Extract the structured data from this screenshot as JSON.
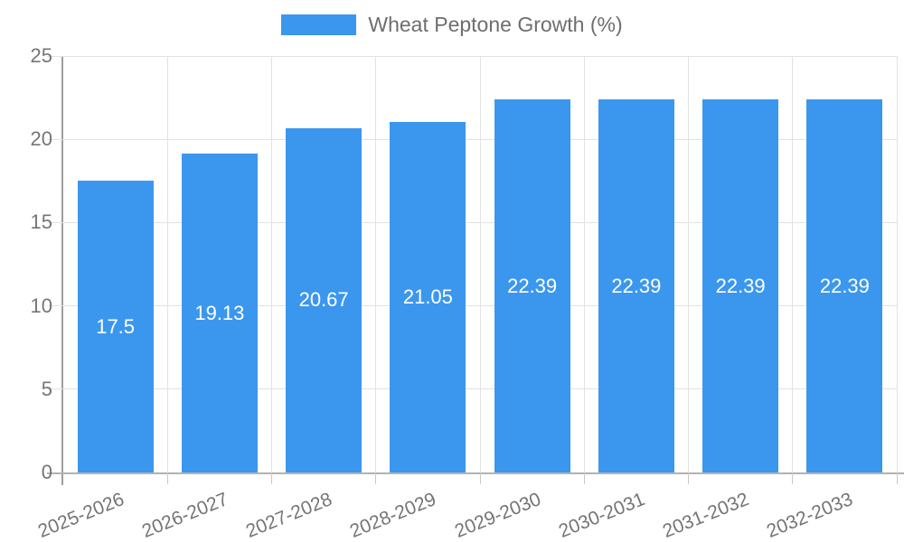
{
  "chart_data": {
    "type": "bar",
    "title": "",
    "legend": {
      "label": "Wheat Peptone Growth (%)",
      "position": "top"
    },
    "categories": [
      "2025-2026",
      "2026-2027",
      "2027-2028",
      "2028-2029",
      "2029-2030",
      "2030-2031",
      "2031-2032",
      "2032-2033"
    ],
    "values": [
      17.5,
      19.13,
      20.67,
      21.05,
      22.39,
      22.39,
      22.39,
      22.39
    ],
    "value_labels": [
      "17.5",
      "19.13",
      "20.67",
      "21.05",
      "22.39",
      "22.39",
      "22.39",
      "22.39"
    ],
    "xlabel": "",
    "ylabel": "",
    "ylim": [
      0,
      25
    ],
    "yticks": [
      0,
      5,
      10,
      15,
      20,
      25
    ],
    "grid": true,
    "x_label_rotation_deg": -22,
    "colors": {
      "bar": "#3b97ee",
      "bar_label_text": "#ffffff",
      "axis_text": "#757575",
      "legend_text": "#6e6e6e",
      "gridline": "#e2e2e2",
      "axis_line": "#9e9e9e"
    }
  }
}
